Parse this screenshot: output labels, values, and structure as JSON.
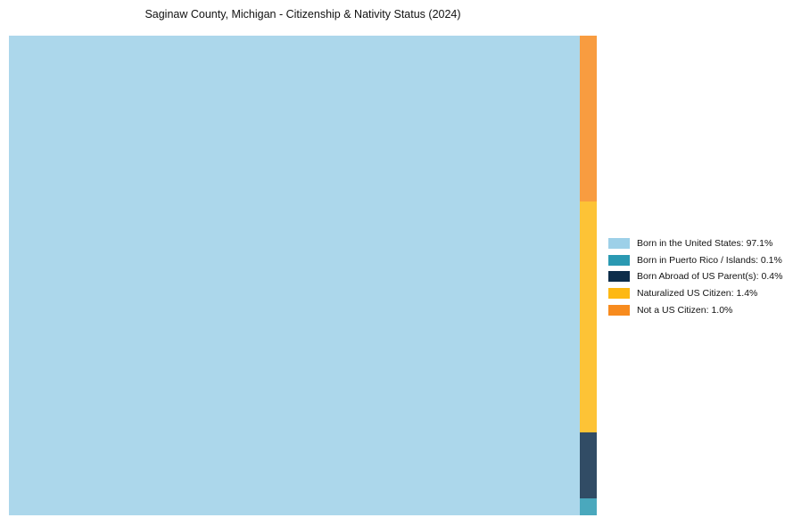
{
  "chart_data": {
    "type": "treemap",
    "title": "Saginaw County, Michigan - Citizenship & Nativity Status (2024)",
    "background": "#ffffff",
    "legend_position": "right",
    "legend_value_format": "{label}: {value}%",
    "series": [
      {
        "label": "Born in the United States",
        "value": 97.1,
        "color": "#9dd0e8"
      },
      {
        "label": "Born in Puerto Rico / Islands",
        "value": 0.1,
        "color": "#2a99b2"
      },
      {
        "label": "Born Abroad of US Parent(s)",
        "value": 0.4,
        "color": "#0d2d4a"
      },
      {
        "label": "Naturalized US Citizen",
        "value": 1.4,
        "color": "#fdb813"
      },
      {
        "label": "Not a US Citizen",
        "value": 1.0,
        "color": "#f78b1e"
      }
    ],
    "strip_order_top_to_bottom": [
      "Not a US Citizen",
      "Naturalized US Citizen",
      "Born Abroad of US Parent(s)",
      "Born in Puerto Rico / Islands"
    ]
  }
}
